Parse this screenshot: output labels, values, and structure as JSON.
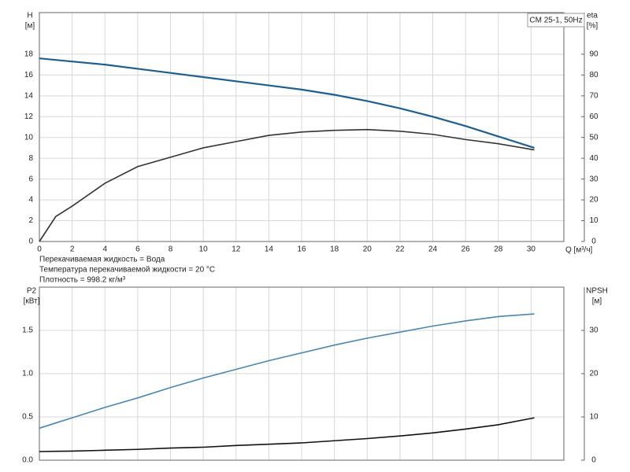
{
  "chart_data": [
    {
      "type": "line",
      "title": "CM 25-1, 50Hz",
      "ylabel": "H",
      "yunit": "[м]",
      "y2label": "eta",
      "y2unit": "[%]",
      "xlabel": "Q [м³/ч]",
      "notes": [
        "Перекачиваемая жидкость = Вода",
        "Температура перекачиваемой жидкости = 20 °C",
        "Плотность = 998.2 кг/м³"
      ],
      "x": [
        0,
        1,
        2,
        4,
        6,
        8,
        10,
        12,
        14,
        16,
        18,
        20,
        22,
        24,
        26,
        28,
        30.2
      ],
      "xlim": [
        0,
        32
      ],
      "xticks": [
        0,
        2,
        4,
        6,
        8,
        10,
        12,
        14,
        16,
        18,
        20,
        22,
        24,
        26,
        28,
        30
      ],
      "ylim": [
        0,
        22
      ],
      "yticks": [
        0,
        2,
        4,
        6,
        8,
        10,
        12,
        14,
        16,
        18
      ],
      "y2lim": [
        0,
        110
      ],
      "y2ticks": [
        0,
        10,
        20,
        30,
        40,
        50,
        60,
        70,
        80,
        90
      ],
      "grid": true,
      "series": [
        {
          "color": "#1f5f8f",
          "values": [
            17.6,
            17.45,
            17.3,
            17.0,
            16.6,
            16.2,
            15.8,
            15.4,
            15.0,
            14.6,
            14.1,
            13.5,
            12.8,
            12.0,
            11.1,
            10.1,
            9.0
          ]
        },
        {
          "color": "#333333",
          "axis": "y2",
          "values": [
            0,
            12,
            17,
            28,
            36,
            40.5,
            45,
            48,
            51,
            52.6,
            53.4,
            53.8,
            53,
            51.5,
            49,
            47,
            44
          ]
        }
      ]
    },
    {
      "type": "line",
      "ylabel": "P2",
      "yunit": "[кВт]",
      "y2label": "NPSH",
      "y2unit": "[м]",
      "x": [
        0,
        1,
        2,
        4,
        6,
        8,
        10,
        12,
        14,
        16,
        18,
        20,
        22,
        24,
        26,
        28,
        30.2
      ],
      "xlim": [
        0,
        32
      ],
      "ylim": [
        0,
        2.0
      ],
      "yticks": [
        {
          "value": 0,
          "label": "0.0"
        },
        0.5,
        {
          "value": 1,
          "label": "1.0"
        },
        1.5
      ],
      "y2lim": [
        0,
        40
      ],
      "y2ticks": [
        0,
        10,
        20,
        30
      ],
      "grid": true,
      "series": [
        {
          "color": "#4a86b0",
          "values": [
            0.37,
            0.43,
            0.49,
            0.61,
            0.72,
            0.84,
            0.95,
            1.05,
            1.15,
            1.24,
            1.33,
            1.41,
            1.48,
            1.55,
            1.61,
            1.66,
            1.69
          ]
        },
        {
          "color": "#111111",
          "axis": "y2",
          "values": [
            2.0,
            2.05,
            2.1,
            2.3,
            2.5,
            2.8,
            3.0,
            3.4,
            3.7,
            4.0,
            4.5,
            5.0,
            5.6,
            6.3,
            7.2,
            8.2,
            9.8
          ]
        }
      ]
    }
  ]
}
